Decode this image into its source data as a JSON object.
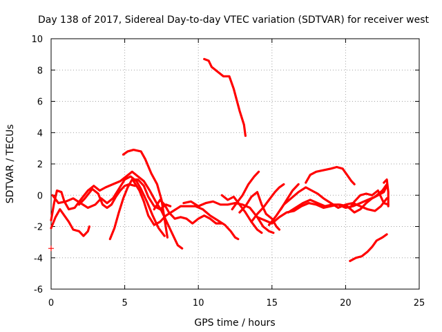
{
  "chart_data": {
    "type": "scatter",
    "title": "Day 138 of 2017, Sidereal Day-to-day VTEC variation (SDTVAR) for receiver west",
    "xlabel": "GPS time / hours",
    "ylabel": "SDTVAR / TECUs",
    "xlim": [
      0,
      25
    ],
    "ylim": [
      -6,
      10
    ],
    "xticks": [
      "0",
      "5",
      "10",
      "15",
      "20",
      "25"
    ],
    "yticks": [
      "-6",
      "-4",
      "-2",
      "0",
      "2",
      "4",
      "6",
      "8",
      "10"
    ],
    "grid": true,
    "marker": "+",
    "color": "#ff0000",
    "series": [
      {
        "name": "s1",
        "points": [
          [
            10.4,
            8.7
          ],
          [
            10.7,
            8.6
          ],
          [
            10.9,
            8.2
          ],
          [
            11.3,
            7.9
          ],
          [
            11.7,
            7.6
          ],
          [
            12.1,
            7.6
          ],
          [
            12.4,
            6.8
          ],
          [
            12.8,
            5.4
          ],
          [
            13.1,
            4.5
          ],
          [
            13.2,
            3.8
          ]
        ]
      },
      {
        "name": "s2",
        "points": [
          [
            4.9,
            2.6
          ],
          [
            5.2,
            2.8
          ],
          [
            5.6,
            2.9
          ],
          [
            6.1,
            2.8
          ],
          [
            6.4,
            2.3
          ],
          [
            6.8,
            1.4
          ],
          [
            7.2,
            0.7
          ],
          [
            7.5,
            -0.3
          ],
          [
            7.7,
            -1.5
          ],
          [
            7.9,
            -2.7
          ]
        ]
      },
      {
        "name": "s3",
        "points": [
          [
            0.0,
            -3.4
          ]
        ]
      },
      {
        "name": "s4",
        "points": [
          [
            0.0,
            -1.6
          ],
          [
            0.2,
            -0.5
          ],
          [
            0.4,
            0.3
          ],
          [
            0.7,
            0.2
          ],
          [
            0.9,
            -0.4
          ],
          [
            1.2,
            -0.9
          ],
          [
            1.6,
            -0.8
          ],
          [
            2.0,
            -0.3
          ],
          [
            2.5,
            0.3
          ],
          [
            2.9,
            0.6
          ],
          [
            3.3,
            0.3
          ],
          [
            3.7,
            0.5
          ],
          [
            4.2,
            0.7
          ],
          [
            4.7,
            0.9
          ],
          [
            5.1,
            1.2
          ],
          [
            5.5,
            1.5
          ],
          [
            5.9,
            1.2
          ],
          [
            6.3,
            0.9
          ],
          [
            6.7,
            0.3
          ],
          [
            7.1,
            -0.4
          ],
          [
            7.5,
            -1.0
          ],
          [
            7.8,
            -1.6
          ],
          [
            8.1,
            -2.2
          ],
          [
            8.4,
            -2.8
          ],
          [
            8.6,
            -3.2
          ],
          [
            8.9,
            -3.4
          ]
        ]
      },
      {
        "name": "s5",
        "points": [
          [
            0.0,
            -2.1
          ],
          [
            0.3,
            -1.4
          ],
          [
            0.6,
            -0.9
          ],
          [
            0.9,
            -1.3
          ],
          [
            1.2,
            -1.7
          ],
          [
            1.5,
            -2.2
          ],
          [
            1.9,
            -2.3
          ],
          [
            2.2,
            -2.6
          ],
          [
            2.5,
            -2.3
          ],
          [
            2.6,
            -2.0
          ]
        ]
      },
      {
        "name": "s6",
        "points": [
          [
            0.1,
            0.0
          ],
          [
            0.5,
            -0.5
          ],
          [
            1.0,
            -0.4
          ],
          [
            1.5,
            -0.2
          ],
          [
            2.0,
            -0.5
          ],
          [
            2.5,
            -0.8
          ],
          [
            3.0,
            -0.6
          ],
          [
            3.4,
            -0.2
          ],
          [
            3.8,
            -0.5
          ],
          [
            4.2,
            -0.2
          ],
          [
            4.6,
            0.4
          ],
          [
            5.0,
            1.0
          ],
          [
            5.4,
            1.2
          ],
          [
            5.8,
            0.9
          ],
          [
            6.1,
            0.4
          ],
          [
            6.5,
            -0.4
          ],
          [
            6.9,
            -1.3
          ],
          [
            7.3,
            -2.1
          ],
          [
            7.7,
            -2.6
          ]
        ]
      },
      {
        "name": "s7",
        "points": [
          [
            1.9,
            -0.6
          ],
          [
            2.3,
            -0.2
          ],
          [
            2.8,
            0.4
          ],
          [
            3.2,
            0.1
          ],
          [
            3.5,
            -0.6
          ],
          [
            3.8,
            -0.8
          ],
          [
            4.1,
            -0.6
          ],
          [
            4.4,
            -0.1
          ],
          [
            4.7,
            0.3
          ],
          [
            5.0,
            0.6
          ],
          [
            5.3,
            0.7
          ],
          [
            5.7,
            0.6
          ]
        ]
      },
      {
        "name": "s8",
        "points": [
          [
            4.0,
            -2.8
          ],
          [
            4.3,
            -2.1
          ],
          [
            4.6,
            -1.1
          ],
          [
            4.9,
            -0.2
          ],
          [
            5.2,
            0.5
          ],
          [
            5.5,
            1.0
          ],
          [
            5.9,
            1.0
          ],
          [
            6.3,
            0.6
          ],
          [
            6.6,
            -0.1
          ],
          [
            7.0,
            -0.7
          ],
          [
            7.4,
            -0.9
          ],
          [
            7.8,
            -0.6
          ],
          [
            8.1,
            -0.7
          ]
        ]
      },
      {
        "name": "s9",
        "points": [
          [
            5.6,
            0.9
          ],
          [
            6.0,
            0.3
          ],
          [
            6.3,
            -0.4
          ],
          [
            6.6,
            -1.3
          ],
          [
            7.0,
            -1.9
          ],
          [
            7.4,
            -1.7
          ],
          [
            7.8,
            -1.3
          ],
          [
            8.3,
            -1.0
          ],
          [
            8.8,
            -0.7
          ],
          [
            9.3,
            -0.7
          ],
          [
            9.8,
            -0.7
          ],
          [
            10.3,
            -0.9
          ],
          [
            10.8,
            -1.3
          ],
          [
            11.3,
            -1.6
          ],
          [
            11.8,
            -1.9
          ],
          [
            12.2,
            -2.3
          ],
          [
            12.5,
            -2.7
          ],
          [
            12.7,
            -2.8
          ]
        ]
      },
      {
        "name": "s10",
        "points": [
          [
            7.0,
            -0.9
          ],
          [
            7.4,
            -0.3
          ],
          [
            7.7,
            -0.6
          ],
          [
            8.0,
            -1.1
          ],
          [
            8.4,
            -1.5
          ],
          [
            8.8,
            -1.4
          ],
          [
            9.2,
            -1.5
          ],
          [
            9.6,
            -1.8
          ],
          [
            10.0,
            -1.5
          ],
          [
            10.4,
            -1.3
          ],
          [
            10.8,
            -1.5
          ],
          [
            11.2,
            -1.8
          ],
          [
            11.6,
            -1.8
          ]
        ]
      },
      {
        "name": "s11",
        "points": [
          [
            9.0,
            -0.5
          ],
          [
            9.5,
            -0.4
          ],
          [
            10.0,
            -0.7
          ],
          [
            10.5,
            -0.5
          ],
          [
            11.0,
            -0.4
          ],
          [
            11.5,
            -0.6
          ],
          [
            12.0,
            -0.6
          ],
          [
            12.5,
            -0.5
          ],
          [
            13.0,
            -0.6
          ],
          [
            13.5,
            -0.8
          ],
          [
            14.0,
            -1.4
          ],
          [
            14.4,
            -2.0
          ],
          [
            14.8,
            -2.3
          ],
          [
            15.1,
            -2.4
          ]
        ]
      },
      {
        "name": "s12",
        "points": [
          [
            11.6,
            0.0
          ],
          [
            12.0,
            -0.3
          ],
          [
            12.4,
            -0.1
          ],
          [
            12.8,
            -0.6
          ],
          [
            13.2,
            -1.1
          ],
          [
            13.6,
            -1.7
          ],
          [
            14.0,
            -2.2
          ],
          [
            14.3,
            -2.4
          ]
        ]
      },
      {
        "name": "s13",
        "points": [
          [
            12.3,
            -0.9
          ],
          [
            12.6,
            -0.5
          ],
          [
            13.0,
            0.0
          ],
          [
            13.4,
            0.7
          ],
          [
            13.8,
            1.2
          ],
          [
            14.1,
            1.5
          ]
        ]
      },
      {
        "name": "s14",
        "points": [
          [
            12.8,
            -1.1
          ],
          [
            13.2,
            -0.7
          ],
          [
            13.6,
            -0.1
          ],
          [
            14.0,
            0.2
          ],
          [
            14.3,
            -0.6
          ],
          [
            14.6,
            -1.2
          ],
          [
            15.0,
            -1.5
          ],
          [
            15.3,
            -2.0
          ],
          [
            15.5,
            -2.2
          ]
        ]
      },
      {
        "name": "s15",
        "points": [
          [
            13.6,
            -1.7
          ],
          [
            14.0,
            -1.2
          ],
          [
            14.4,
            -0.8
          ],
          [
            14.8,
            -0.3
          ],
          [
            15.2,
            0.2
          ],
          [
            15.5,
            0.5
          ],
          [
            15.8,
            0.7
          ]
        ]
      },
      {
        "name": "s16",
        "points": [
          [
            14.0,
            -1.4
          ],
          [
            14.5,
            -1.6
          ],
          [
            15.0,
            -1.8
          ],
          [
            15.5,
            -1.4
          ],
          [
            16.0,
            -1.1
          ],
          [
            16.5,
            -1.0
          ],
          [
            17.0,
            -0.7
          ],
          [
            17.5,
            -0.5
          ],
          [
            18.0,
            -0.6
          ],
          [
            18.5,
            -0.8
          ],
          [
            19.0,
            -0.7
          ],
          [
            19.5,
            -0.6
          ],
          [
            20.0,
            -0.8
          ],
          [
            20.5,
            -0.7
          ],
          [
            21.0,
            -0.5
          ],
          [
            21.5,
            -0.3
          ],
          [
            22.0,
            -0.1
          ],
          [
            22.5,
            0.3
          ],
          [
            22.8,
            0.7
          ]
        ]
      },
      {
        "name": "s17",
        "points": [
          [
            14.8,
            -1.9
          ],
          [
            15.3,
            -1.3
          ],
          [
            15.8,
            -0.6
          ],
          [
            16.3,
            -0.2
          ],
          [
            16.8,
            0.2
          ],
          [
            17.3,
            0.5
          ],
          [
            17.7,
            0.3
          ],
          [
            18.1,
            0.1
          ],
          [
            18.5,
            -0.2
          ],
          [
            19.0,
            -0.5
          ],
          [
            19.5,
            -0.8
          ],
          [
            20.0,
            -0.6
          ],
          [
            20.5,
            -0.5
          ],
          [
            21.0,
            -0.7
          ],
          [
            21.5,
            -0.9
          ],
          [
            22.0,
            -1.0
          ],
          [
            22.4,
            -0.7
          ],
          [
            22.8,
            -0.2
          ]
        ]
      },
      {
        "name": "s18",
        "points": [
          [
            15.6,
            -0.9
          ],
          [
            16.0,
            -0.3
          ],
          [
            16.4,
            0.3
          ],
          [
            16.8,
            0.7
          ]
        ]
      },
      {
        "name": "s19",
        "points": [
          [
            16.1,
            -1.1
          ],
          [
            16.6,
            -0.8
          ],
          [
            17.1,
            -0.5
          ],
          [
            17.6,
            -0.3
          ],
          [
            18.1,
            -0.5
          ],
          [
            18.6,
            -0.7
          ],
          [
            19.1,
            -0.6
          ],
          [
            19.6,
            -0.6
          ],
          [
            20.1,
            -0.7
          ],
          [
            20.6,
            -1.1
          ],
          [
            21.0,
            -0.9
          ],
          [
            21.4,
            -0.5
          ],
          [
            21.8,
            -0.2
          ],
          [
            22.2,
            0.0
          ],
          [
            22.6,
            0.2
          ],
          [
            22.8,
            0.6
          ]
        ]
      },
      {
        "name": "s20",
        "points": [
          [
            17.3,
            0.8
          ],
          [
            17.6,
            1.3
          ],
          [
            18.0,
            1.5
          ],
          [
            18.5,
            1.6
          ],
          [
            19.0,
            1.7
          ],
          [
            19.4,
            1.8
          ],
          [
            19.8,
            1.7
          ],
          [
            20.1,
            1.3
          ],
          [
            20.4,
            0.9
          ],
          [
            20.6,
            0.7
          ]
        ]
      },
      {
        "name": "s21",
        "points": [
          [
            20.3,
            -4.2
          ],
          [
            20.7,
            -4.0
          ],
          [
            21.1,
            -3.9
          ],
          [
            21.5,
            -3.6
          ],
          [
            21.8,
            -3.3
          ],
          [
            22.1,
            -2.9
          ],
          [
            22.5,
            -2.7
          ],
          [
            22.8,
            -2.5
          ]
        ]
      },
      {
        "name": "s22",
        "points": [
          [
            20.3,
            -0.8
          ],
          [
            20.6,
            -0.4
          ],
          [
            21.0,
            0.0
          ],
          [
            21.4,
            0.1
          ],
          [
            21.8,
            0.0
          ],
          [
            22.2,
            0.3
          ],
          [
            22.6,
            -0.5
          ],
          [
            22.9,
            -0.6
          ]
        ]
      },
      {
        "name": "s23",
        "points": [
          [
            22.6,
            0.8
          ],
          [
            22.8,
            1.0
          ],
          [
            22.9,
            0.2
          ],
          [
            22.9,
            -0.7
          ]
        ]
      }
    ]
  }
}
